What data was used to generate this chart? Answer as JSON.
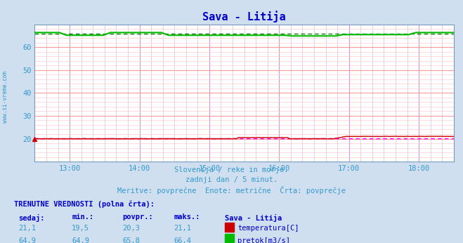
{
  "title": "Sava - Litija",
  "title_color": "#0000cc",
  "bg_color": "#d0dff0",
  "plot_bg_color": "#ffffff",
  "border_color": "#8899aa",
  "watermark": "www.si-vreme.com",
  "subtitle_lines": [
    "Slovenija / reke in morje.",
    "zadnji dan / 5 minut.",
    "Meritve: povprečne  Enote: metrične  Črta: povprečje"
  ],
  "subtitle_color": "#3399cc",
  "ylim": [
    10,
    70
  ],
  "yticks": [
    20,
    30,
    40,
    50,
    60
  ],
  "xlim_start": 12.5,
  "xlim_end": 18.5,
  "xticks_hours": [
    13,
    14,
    15,
    16,
    17,
    18
  ],
  "xtick_labels": [
    "13:00",
    "14:00",
    "15:00",
    "16:00",
    "17:00",
    "18:00"
  ],
  "major_grid_color": "#ff9999",
  "minor_grid_color": "#ffcccc",
  "major_vgrid_color": "#cc99cc",
  "minor_vgrid_color": "#ddbbdd",
  "temp_color": "#cc0000",
  "flow_color": "#00bb00",
  "avg_temp_color": "#ff00ff",
  "avg_flow_color": "#007700",
  "temp_avg": 20.3,
  "flow_avg": 65.8,
  "table_header": "TRENUTNE VREDNOSTI (polna črta):",
  "table_col_headers": [
    "sedaj:",
    "min.:",
    "povpr.:",
    "maks.:",
    "Sava - Litija"
  ],
  "row1_vals": [
    "21,1",
    "19,5",
    "20,3",
    "21,1"
  ],
  "row1_label": "temperatura[C]",
  "row1_color": "#cc0000",
  "row2_vals": [
    "64,9",
    "64,9",
    "65,8",
    "66,4"
  ],
  "row2_label": "pretok[m3/s]",
  "row2_color": "#00bb00"
}
